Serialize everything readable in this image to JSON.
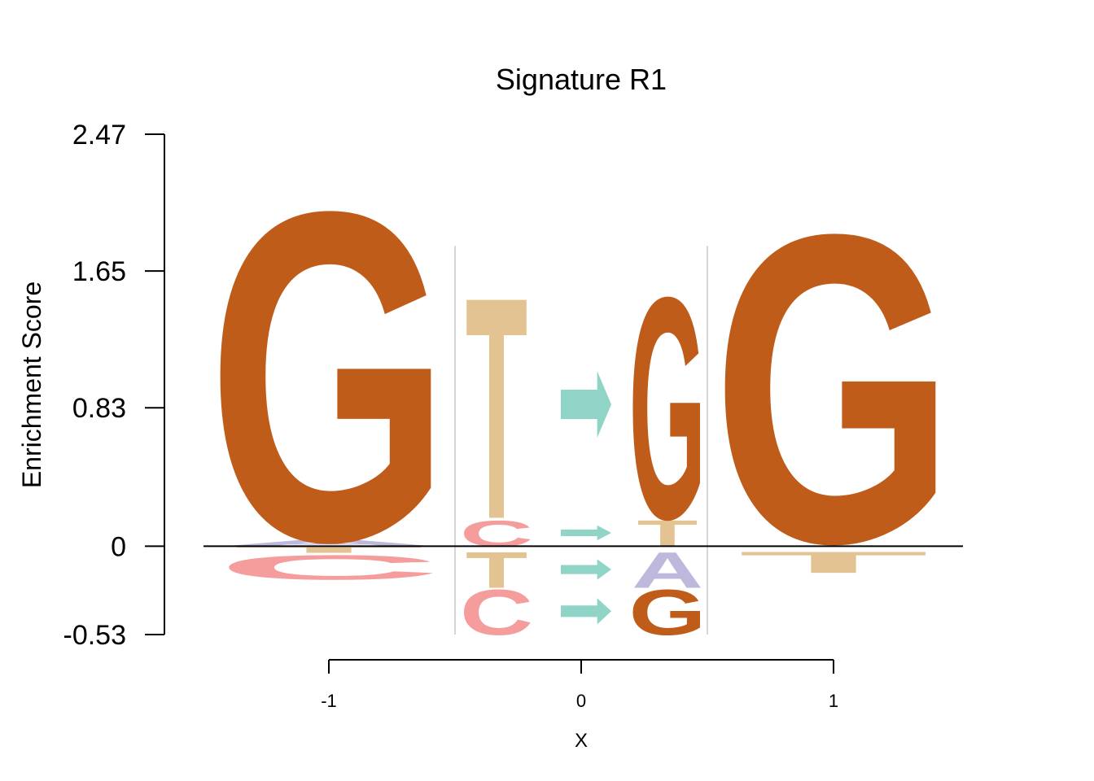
{
  "chart_data": {
    "type": "sequence-logo",
    "title": "Signature R1",
    "xlabel": "X",
    "ylabel": "Enrichment Score",
    "ylim": [
      -0.53,
      2.47
    ],
    "y_ticks": [
      "2.47",
      "1.65",
      "0.83",
      "0",
      "-0.53"
    ],
    "y_tick_values": [
      2.47,
      1.65,
      0.83,
      0,
      -0.53
    ],
    "x_ticks": [
      "-1",
      "0",
      "1"
    ],
    "x_tick_values": [
      -1,
      0,
      1
    ],
    "colors": {
      "G": "#c05c1a",
      "T": "#e3c392",
      "C": "#f59c9c",
      "A": "#bdb8dc",
      "arrow": "#8fd4c7",
      "divider": "#c8c8c8",
      "baseline": "#000000"
    },
    "positions": [
      {
        "x": -1,
        "positive": [
          {
            "letter": "A",
            "from": 0.0,
            "to": 0.04
          },
          {
            "letter": "G",
            "from": 0.04,
            "to": 2.06
          }
        ],
        "negative": [
          {
            "letter": "T",
            "from": -0.04,
            "to": 0.0
          },
          {
            "letter": "C",
            "from": -0.2,
            "to": -0.05
          }
        ]
      },
      {
        "x": 0,
        "substitutions": [
          {
            "from_letter": "C",
            "to_letter": "T",
            "from": 0.0,
            "to": 0.16
          },
          {
            "from_letter": "T",
            "to_letter": "G",
            "from": 0.17,
            "to": 1.53
          },
          {
            "from_letter": "T",
            "to_letter": "A",
            "from": -0.25,
            "to": -0.03
          },
          {
            "from_letter": "C",
            "to_letter": "G",
            "from": -0.53,
            "to": -0.25
          }
        ],
        "ref_labels": [
          "C",
          "T",
          "C"
        ],
        "alt_labels": [
          "T",
          "G",
          "A",
          "G"
        ]
      },
      {
        "x": 1,
        "positive": [
          {
            "letter": "G",
            "from": 0.03,
            "to": 1.92
          }
        ],
        "negative": [
          {
            "letter": "T",
            "from": -0.16,
            "to": -0.03
          }
        ]
      }
    ]
  }
}
